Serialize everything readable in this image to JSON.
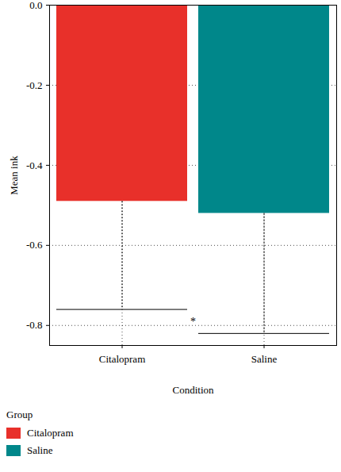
{
  "chart_data": {
    "type": "bar",
    "categories": [
      "Citalopram",
      "Saline"
    ],
    "values": [
      -0.49,
      -0.52
    ],
    "error_low": [
      -0.76,
      -0.82
    ],
    "colors": [
      "#e8302a",
      "#00878a"
    ],
    "xlabel": "Condition",
    "ylabel": "Mean ink",
    "ylim": [
      -0.85,
      0
    ],
    "yticks": [
      {
        "value": 0,
        "label": "0.0"
      },
      -0.2,
      -0.4,
      -0.6,
      -0.8
    ],
    "grid": true,
    "legend": "bottom",
    "legend_title": "Group",
    "annotations": [
      {
        "text": "*",
        "y": -0.79
      }
    ]
  }
}
